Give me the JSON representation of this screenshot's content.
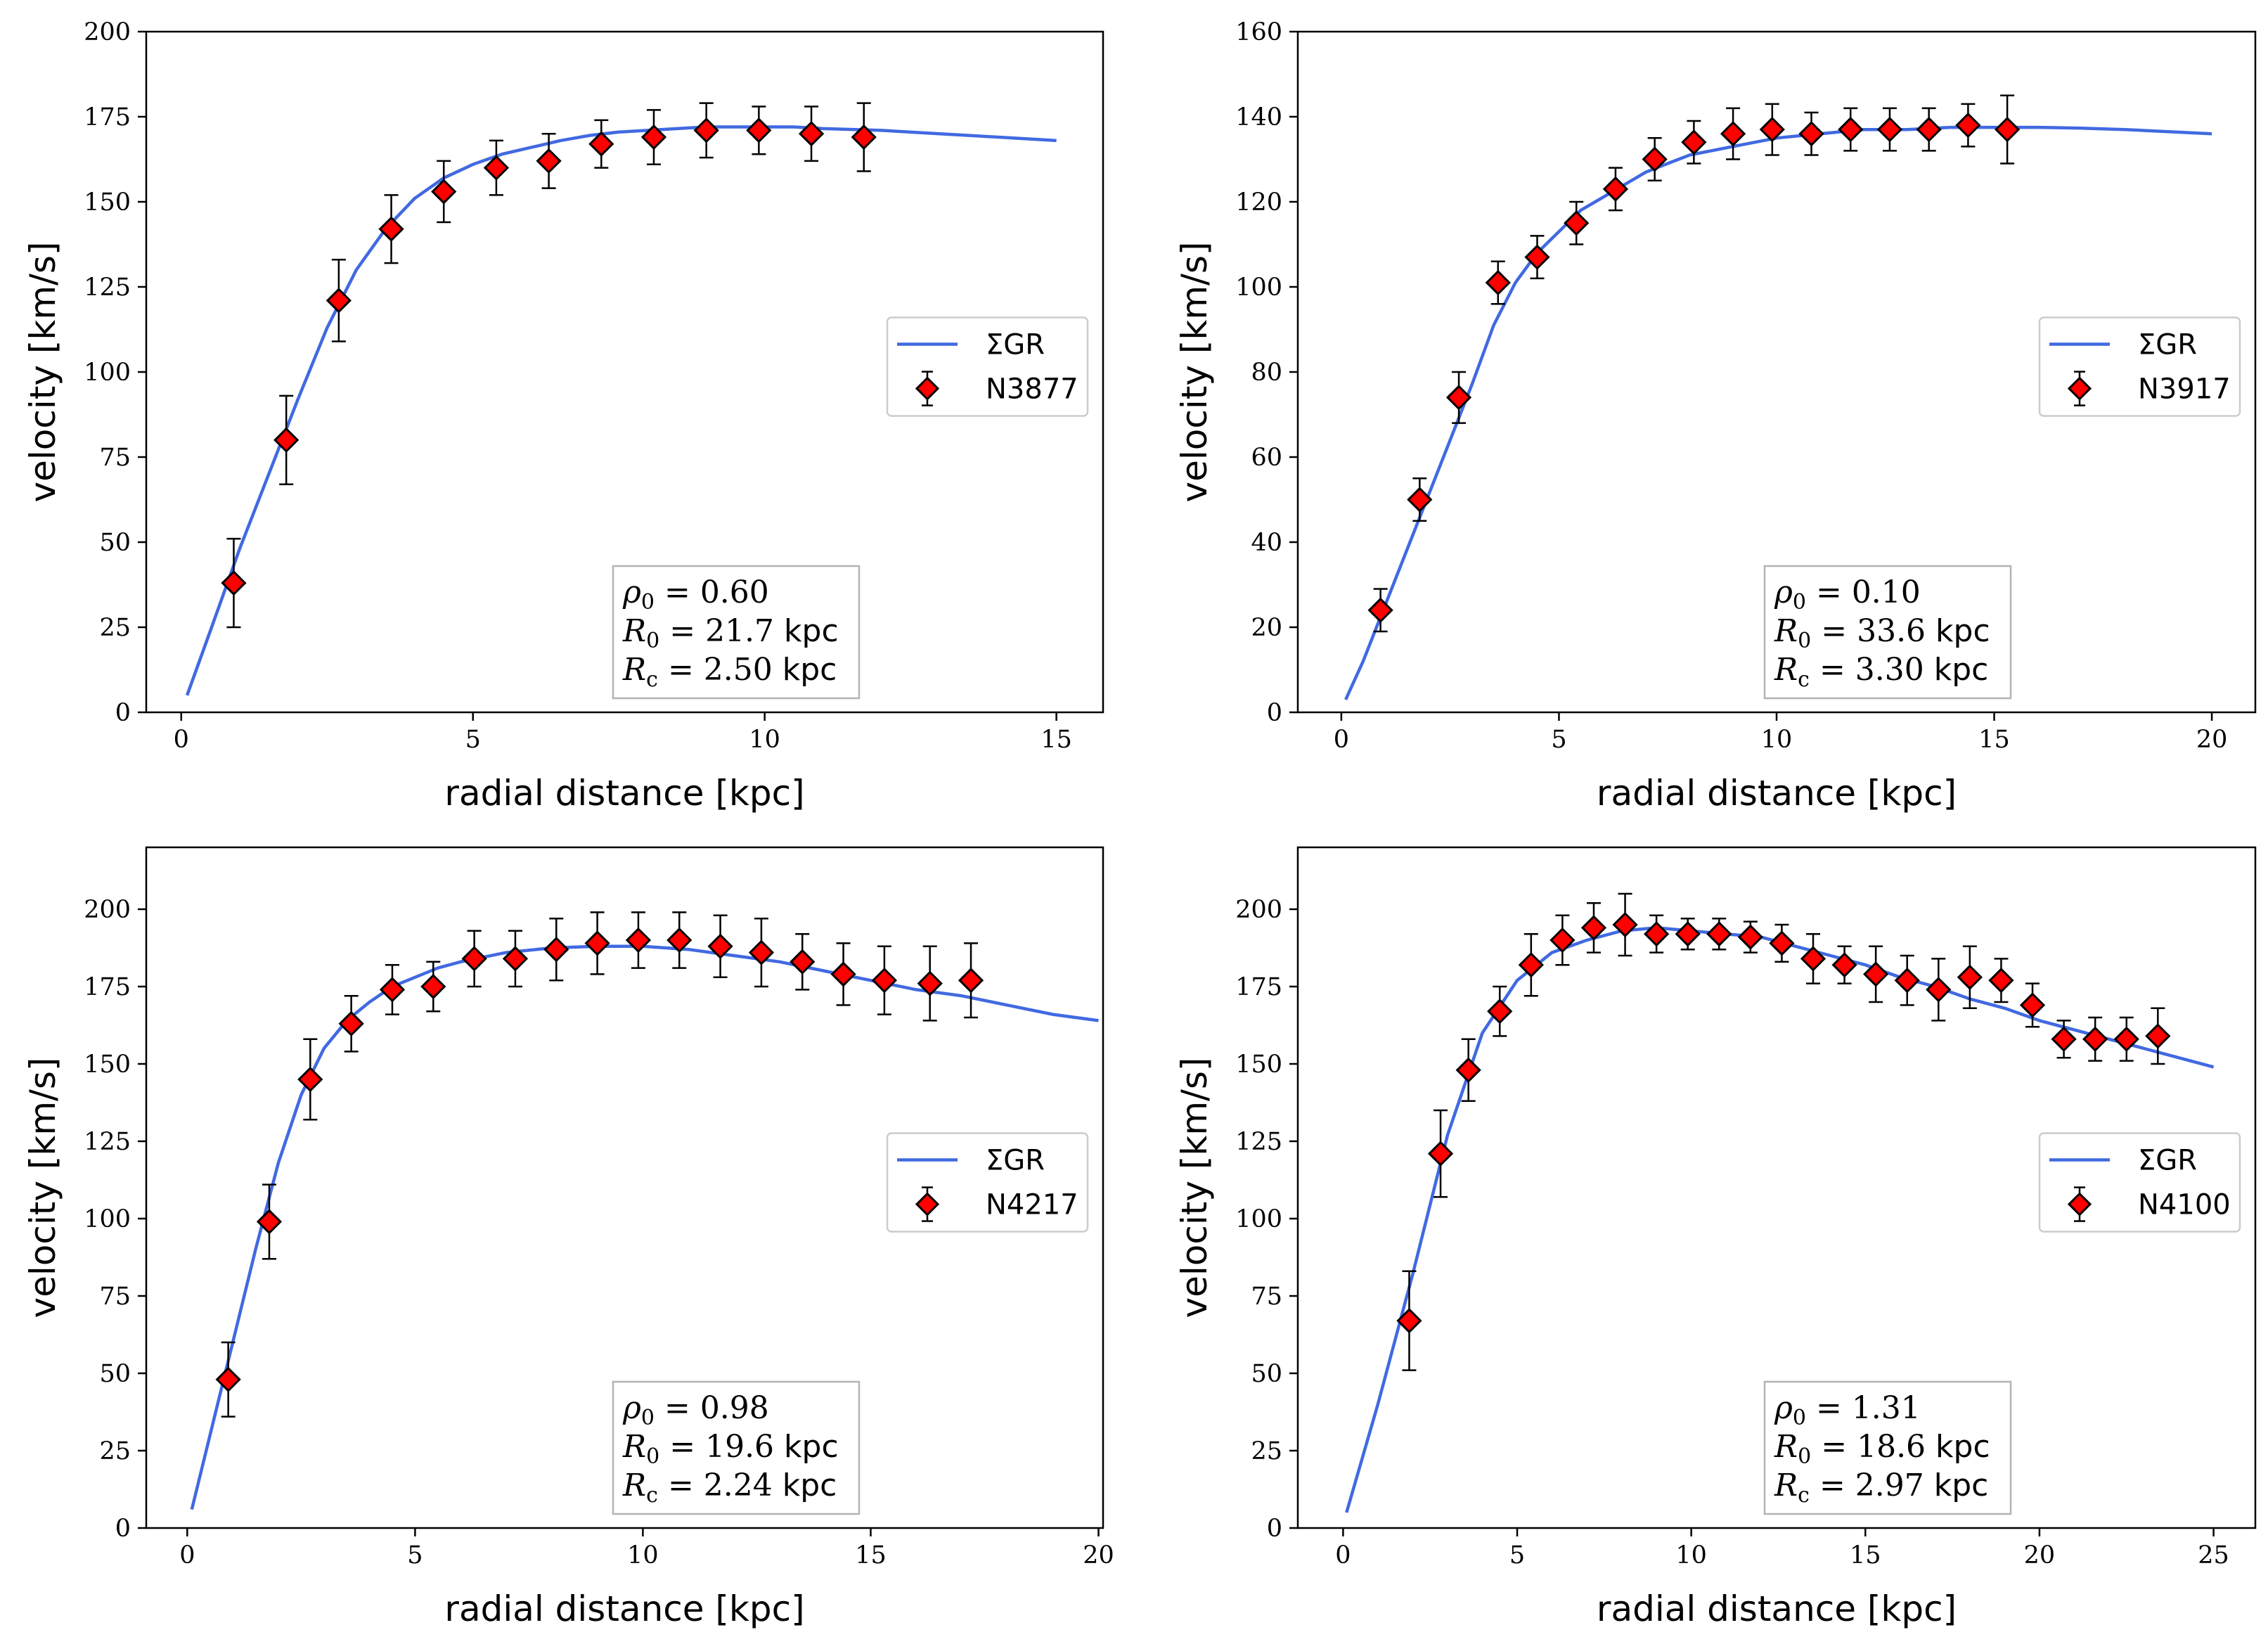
{
  "colors": {
    "model": "#4169e1",
    "marker": "#ff0000",
    "edge": "#000000",
    "legend_border": "#cccccc"
  },
  "chart_data": [
    {
      "type": "scatter",
      "title": "",
      "xlabel": "radial distance [kpc]",
      "ylabel": "velocity [km/s]",
      "xlim": [
        -0.6,
        15.8
      ],
      "ylim": [
        0,
        200
      ],
      "xticks": [
        0,
        5,
        10,
        15
      ],
      "yticks": [
        0,
        25,
        50,
        75,
        100,
        125,
        150,
        175,
        200
      ],
      "legend": {
        "placement": "center-right",
        "model_label": "ΣGR",
        "data_label": "N3877"
      },
      "params": {
        "rho0": "0.60",
        "R0": "21.7",
        "Rc": "2.50",
        "unit": "kpc"
      },
      "model": {
        "x": [
          0.1,
          0.5,
          1,
          1.5,
          2,
          2.5,
          3,
          3.5,
          4,
          4.5,
          5,
          5.5,
          6,
          6.5,
          7,
          7.5,
          8,
          8.5,
          9,
          9.5,
          10,
          10.5,
          11,
          12,
          13,
          14,
          15
        ],
        "y": [
          5,
          24,
          48,
          70,
          92,
          113,
          130,
          142,
          151,
          157,
          161,
          164,
          166,
          168,
          169.5,
          170.5,
          171,
          171.5,
          172,
          172,
          172,
          172,
          171.5,
          171,
          170,
          169,
          168
        ]
      },
      "points": {
        "x": [
          0.9,
          1.8,
          2.7,
          3.6,
          4.5,
          5.4,
          6.3,
          7.2,
          8.1,
          9.0,
          9.9,
          10.8,
          11.7
        ],
        "y": [
          38,
          80,
          121,
          142,
          153,
          160,
          162,
          167,
          169,
          171,
          171,
          170,
          169
        ],
        "err": [
          13,
          13,
          12,
          10,
          9,
          8,
          8,
          7,
          8,
          8,
          7,
          8,
          10
        ]
      }
    },
    {
      "type": "scatter",
      "title": "",
      "xlabel": "radial distance [kpc]",
      "ylabel": "velocity [km/s]",
      "xlim": [
        -1.0,
        21.0
      ],
      "ylim": [
        0,
        160
      ],
      "xticks": [
        0,
        5,
        10,
        15,
        20
      ],
      "yticks": [
        0,
        20,
        40,
        60,
        80,
        100,
        120,
        140,
        160
      ],
      "legend": {
        "placement": "center-right",
        "model_label": "ΣGR",
        "data_label": "N3917"
      },
      "params": {
        "rho0": "0.10",
        "R0": "33.6",
        "Rc": "3.30",
        "unit": "kpc"
      },
      "model": {
        "x": [
          0.1,
          0.5,
          1,
          1.5,
          2,
          2.5,
          3,
          3.5,
          4,
          4.5,
          5,
          5.5,
          6,
          6.5,
          7,
          7.5,
          8,
          9,
          10,
          11,
          12,
          13,
          14,
          15,
          16,
          17,
          18,
          19,
          20
        ],
        "y": [
          3,
          12,
          25,
          38,
          51,
          64,
          77,
          91,
          101,
          108,
          113,
          118,
          121,
          124,
          127,
          129,
          131,
          133,
          135,
          136,
          137,
          137,
          137.5,
          137.5,
          137.5,
          137.3,
          137,
          136.5,
          136
        ]
      },
      "points": {
        "x": [
          0.9,
          1.8,
          2.7,
          3.6,
          4.5,
          5.4,
          6.3,
          7.2,
          8.1,
          9.0,
          9.9,
          10.8,
          11.7,
          12.6,
          13.5,
          14.4,
          15.3
        ],
        "y": [
          24,
          50,
          74,
          101,
          107,
          115,
          123,
          130,
          134,
          136,
          137,
          136,
          137,
          137,
          137,
          138,
          137
        ],
        "err": [
          5,
          5,
          6,
          5,
          5,
          5,
          5,
          5,
          5,
          6,
          6,
          5,
          5,
          5,
          5,
          5,
          8
        ]
      }
    },
    {
      "type": "scatter",
      "title": "",
      "xlabel": "radial distance [kpc]",
      "ylabel": "velocity [km/s]",
      "xlim": [
        -0.9,
        20.1
      ],
      "ylim": [
        0,
        220
      ],
      "xticks": [
        0,
        5,
        10,
        15,
        20
      ],
      "yticks": [
        0,
        25,
        50,
        75,
        100,
        125,
        150,
        175,
        200
      ],
      "legend": {
        "placement": "center-right",
        "model_label": "ΣGR",
        "data_label": "N4217"
      },
      "params": {
        "rho0": "0.98",
        "R0": "19.6",
        "Rc": "2.24",
        "unit": "kpc"
      },
      "model": {
        "x": [
          0.1,
          0.5,
          1,
          1.5,
          2,
          2.5,
          3,
          3.5,
          4,
          4.5,
          5,
          5.5,
          6,
          7,
          8,
          9,
          10,
          11,
          12,
          13,
          14,
          15,
          16,
          17,
          18,
          19,
          20
        ],
        "y": [
          6,
          30,
          60,
          90,
          118,
          140,
          155,
          164,
          170,
          175,
          178,
          181,
          183,
          186,
          187.5,
          188,
          188,
          187,
          185,
          183,
          180,
          177,
          174,
          172,
          169,
          166,
          164
        ]
      },
      "points": {
        "x": [
          0.9,
          1.8,
          2.7,
          3.6,
          4.5,
          5.4,
          6.3,
          7.2,
          8.1,
          9.0,
          9.9,
          10.8,
          11.7,
          12.6,
          13.5,
          14.4,
          15.3,
          16.3,
          17.2
        ],
        "y": [
          48,
          99,
          145,
          163,
          174,
          175,
          184,
          184,
          187,
          189,
          190,
          190,
          188,
          186,
          183,
          179,
          177,
          176,
          177
        ],
        "err": [
          12,
          12,
          13,
          9,
          8,
          8,
          9,
          9,
          10,
          10,
          9,
          9,
          10,
          11,
          9,
          10,
          11,
          12,
          12
        ]
      }
    },
    {
      "type": "scatter",
      "title": "",
      "xlabel": "radial distance [kpc]",
      "ylabel": "velocity [km/s]",
      "xlim": [
        -1.3,
        26.2
      ],
      "ylim": [
        0,
        220
      ],
      "xticks": [
        0,
        5,
        10,
        15,
        20,
        25
      ],
      "yticks": [
        0,
        25,
        50,
        75,
        100,
        125,
        150,
        175,
        200
      ],
      "legend": {
        "placement": "center-right",
        "model_label": "ΣGR",
        "data_label": "N4100"
      },
      "params": {
        "rho0": "1.31",
        "R0": "18.6",
        "Rc": "2.97",
        "unit": "kpc"
      },
      "model": {
        "x": [
          0.1,
          1,
          2,
          3,
          4,
          5,
          6,
          7,
          8,
          9,
          10,
          11,
          12,
          13,
          14,
          15,
          16,
          17,
          18,
          19,
          20,
          21,
          22,
          23,
          24,
          25
        ],
        "y": [
          5,
          40,
          82,
          127,
          160,
          177,
          186,
          190,
          193,
          194,
          193,
          192,
          191,
          188,
          185,
          182,
          178,
          175,
          171,
          168,
          164,
          161,
          158,
          155,
          152,
          149
        ]
      },
      "points": {
        "x": [
          1.9,
          2.8,
          3.6,
          4.5,
          5.4,
          6.3,
          7.2,
          8.1,
          9.0,
          9.9,
          10.8,
          11.7,
          12.6,
          13.5,
          14.4,
          15.3,
          16.2,
          17.1,
          18.0,
          18.9,
          19.8,
          20.7,
          21.6,
          22.5,
          23.4
        ],
        "y": [
          67,
          121,
          148,
          167,
          182,
          190,
          194,
          195,
          192,
          192,
          192,
          191,
          189,
          184,
          182,
          179,
          177,
          174,
          178,
          177,
          169,
          158,
          158,
          158,
          159
        ],
        "err": [
          16,
          14,
          10,
          8,
          10,
          8,
          8,
          10,
          6,
          5,
          5,
          5,
          6,
          8,
          6,
          9,
          8,
          10,
          10,
          7,
          7,
          6,
          7,
          7,
          9
        ]
      }
    }
  ]
}
